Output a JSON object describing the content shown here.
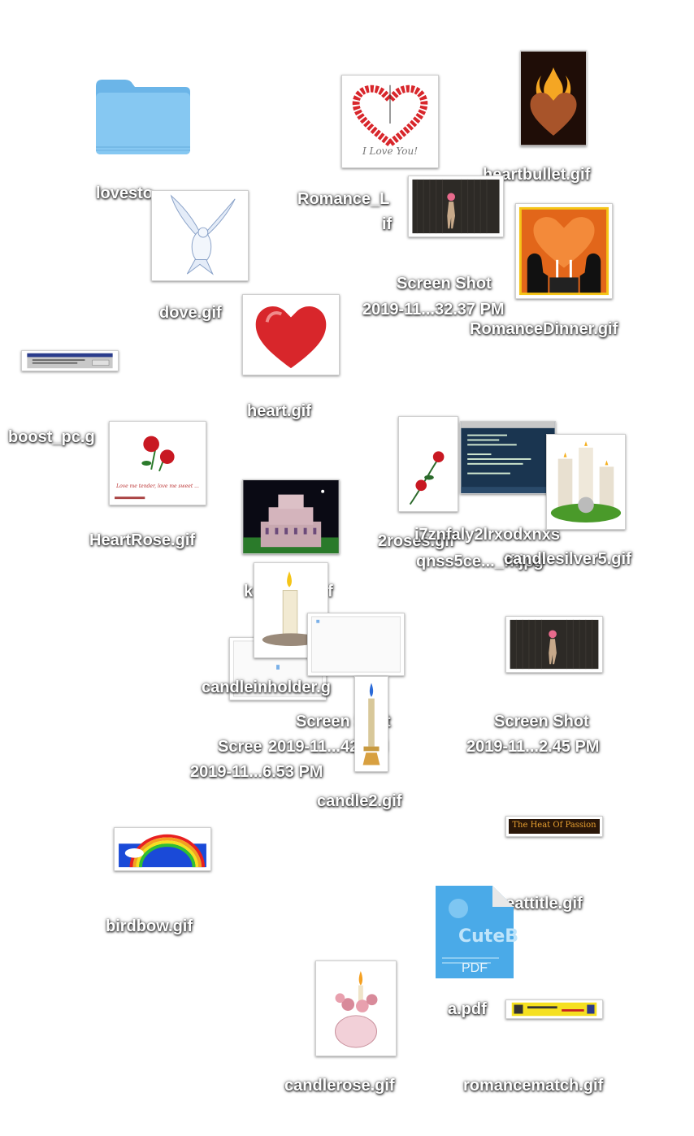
{
  "desktop": {
    "lovestory_label": "lovesto",
    "romance_label_1": "Romance_L",
    "romance_label_2": "if",
    "heartbullet_label": "heartbullet.gif",
    "dove_label": "dove.gif",
    "screenshot1_label_1": "Screen Shot",
    "screenshot1_label_2": "2019-11...32.37 PM",
    "romancedinner_label": "RomanceDinner.gif",
    "heart_label": "heart.gif",
    "boost_label": "boost_pc.g",
    "heartrose_label": "HeartRose.gif",
    "roses_label": "2roses.gif",
    "longname_label_1": "i7znfaly2lrxodxnxs",
    "longname_label_2": "qnss5ce..._ff.jpg",
    "candlesilver_label": "candlesilver5.gif",
    "castle_label": "k",
    "castle_label_end": "f",
    "candleinholder_label": "candleinholder.g",
    "screenshot2_label_1": "Screen Shot",
    "screenshot2_label_2": "2019-11...42 PM",
    "screenshot3_label_1": "Screen Shot",
    "screenshot3_label_2": "2019-11...2.45 PM",
    "screenshot4_label_1": "Scree",
    "screenshot4_label_2": "2019-11...6.53 PM",
    "candle2_label": "candle2.gif",
    "birdbow_label": "birdbow.gif",
    "heattitle_label": "heattitle.gif",
    "heattitle_text": "The Heat Of Passion",
    "pdf_label": "a.pdf",
    "pdf_badge": "PDF",
    "pdf_logo": "CuteB",
    "candlerose_label": "candlerose.gif",
    "romancematch_label": "romancematch.gif",
    "romance_thumb_text": "I Love You!",
    "heartrose_thumb_text": "Love me tender, love me sweet ..."
  },
  "colors": {
    "folder": "#7ec3f0",
    "folder_tab": "#6bb5e8",
    "heart_red": "#d8262b",
    "rose_red": "#c81822",
    "dinner_orange": "#e2661a"
  }
}
